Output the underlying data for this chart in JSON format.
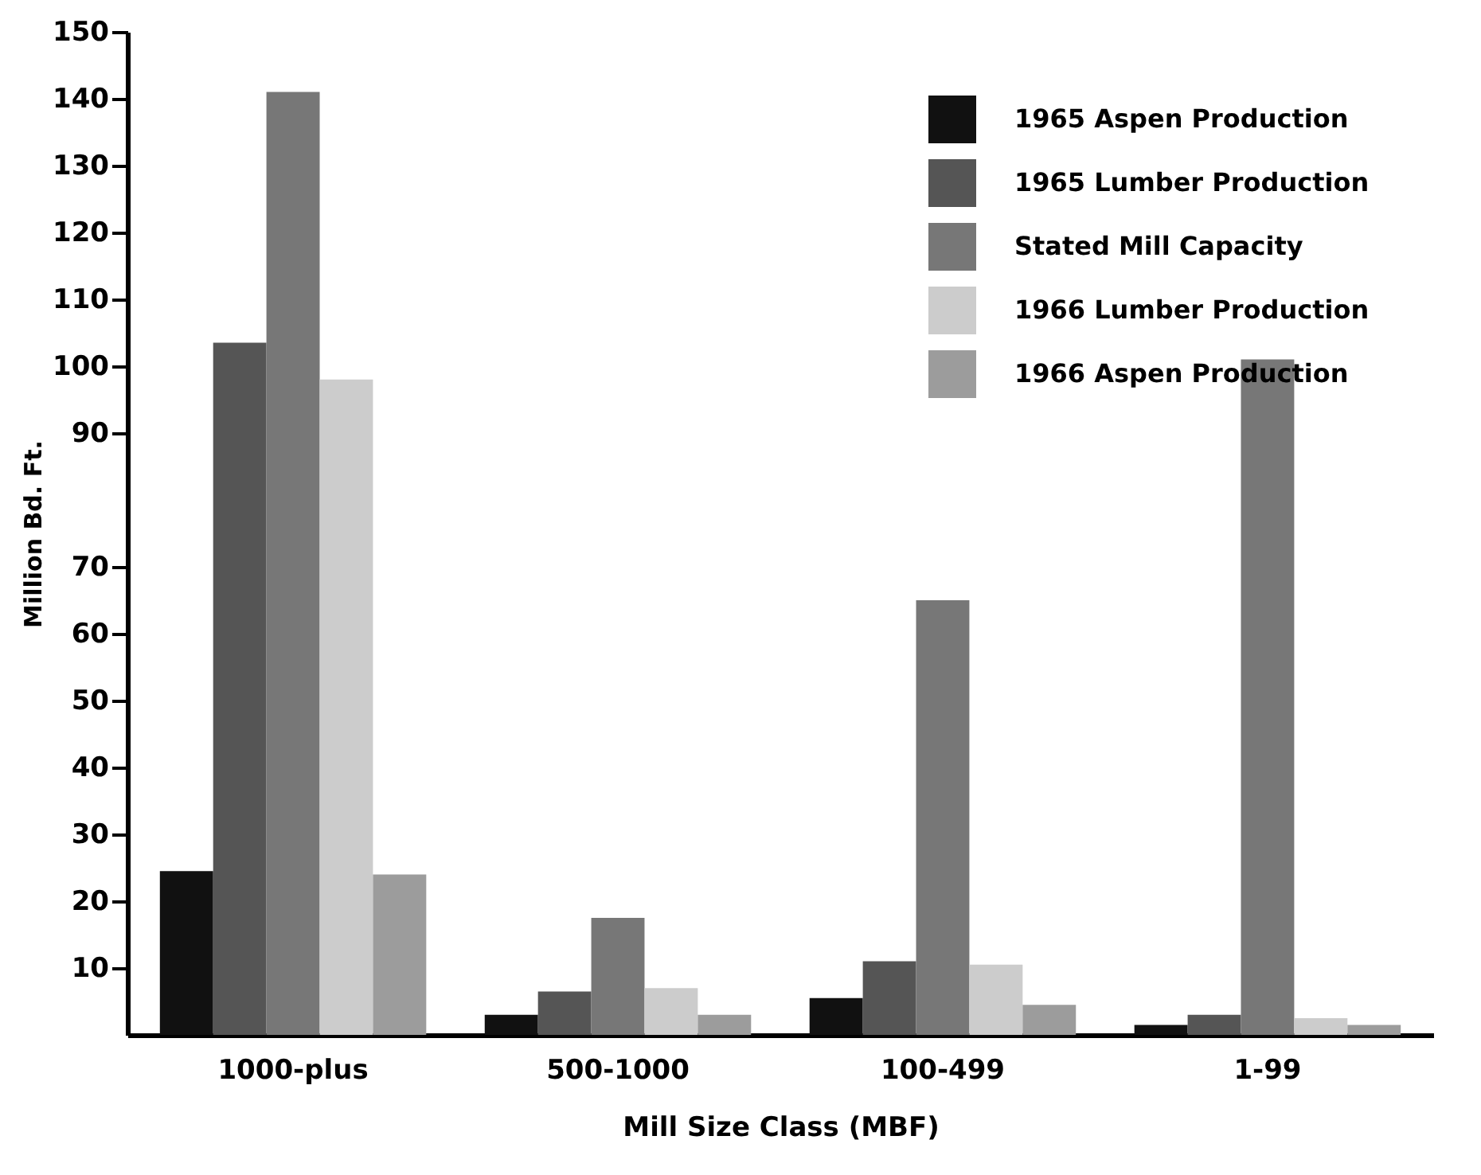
{
  "chart_data": {
    "type": "bar",
    "xlabel": "Mill Size Class (MBF)",
    "ylabel": "Million Bd. Ft.",
    "categories": [
      "1000-plus",
      "500-1000",
      "100-499",
      "1-99"
    ],
    "series": [
      {
        "name": "1965 Aspen Production",
        "color": "#111111",
        "values": [
          24.5,
          3,
          5.5,
          1.5
        ]
      },
      {
        "name": "1965 Lumber Production",
        "color": "#555555",
        "values": [
          103.5,
          6.5,
          11,
          3
        ]
      },
      {
        "name": "Stated Mill Capacity",
        "color": "#777777",
        "values": [
          141,
          17.5,
          65,
          101
        ]
      },
      {
        "name": "1966 Lumber Production",
        "color": "#cccccc",
        "values": [
          98,
          7,
          10.5,
          2.5
        ]
      },
      {
        "name": "1966 Aspen Production",
        "color": "#9c9c9c",
        "values": [
          24,
          3,
          4.5,
          1.5
        ]
      }
    ],
    "ylim": [
      0,
      150
    ],
    "yticks": [
      10,
      20,
      30,
      40,
      50,
      60,
      70,
      90,
      100,
      110,
      120,
      130,
      140,
      150
    ],
    "grid": false,
    "legend": "top right"
  }
}
